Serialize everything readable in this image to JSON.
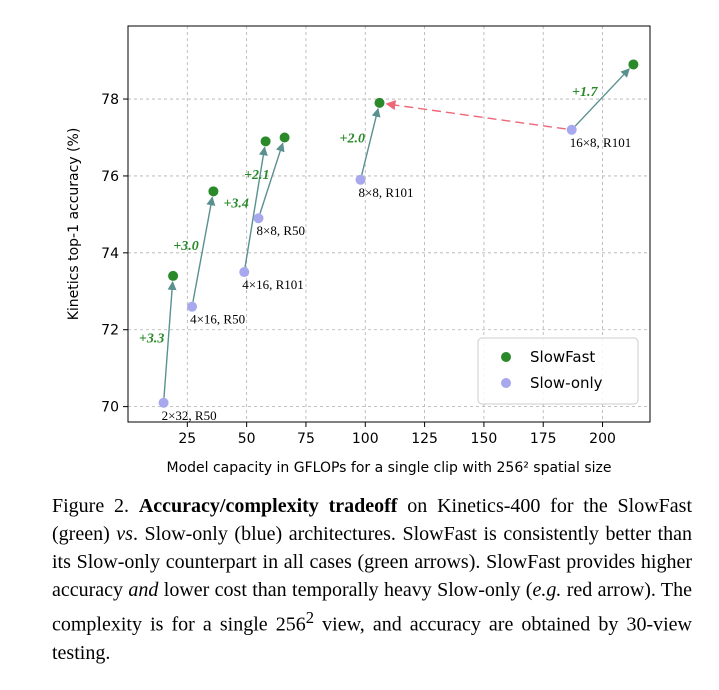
{
  "chart_data": {
    "type": "scatter",
    "xlabel": "Model capacity in GFLOPs for a single clip with 256² spatial size",
    "ylabel": "Kinetics top-1 accuracy (%)",
    "xlim": [
      0,
      220
    ],
    "ylim": [
      69.6,
      79.9
    ],
    "xticks": [
      25,
      50,
      75,
      100,
      125,
      150,
      175,
      200
    ],
    "yticks": [
      70,
      72,
      74,
      76,
      78
    ],
    "grid": true,
    "legend_position": "bottom-right",
    "colors": {
      "slowfast": "#2a8a2a",
      "slowonly": "#a7a8ee",
      "green_arrow": "#5a9090",
      "red_arrow": "#ee6677",
      "gain_label": "#2a8a2a"
    },
    "series": [
      {
        "name": "SlowFast",
        "points": [
          {
            "x": 19,
            "y": 73.4
          },
          {
            "x": 36,
            "y": 75.6
          },
          {
            "x": 58,
            "y": 76.9
          },
          {
            "x": 66,
            "y": 77.0
          },
          {
            "x": 106,
            "y": 77.9
          },
          {
            "x": 213,
            "y": 78.9
          }
        ]
      },
      {
        "name": "Slow-only",
        "points": [
          {
            "x": 15,
            "y": 70.1,
            "label": "2×32, R50"
          },
          {
            "x": 27,
            "y": 72.6,
            "label": "4×16, R50"
          },
          {
            "x": 49,
            "y": 73.5,
            "label": "4×16, R101"
          },
          {
            "x": 55,
            "y": 74.9,
            "label": "8×8, R50"
          },
          {
            "x": 98,
            "y": 75.9,
            "label": "8×8, R101"
          },
          {
            "x": 187,
            "y": 77.2,
            "label": "16×8, R101"
          }
        ]
      }
    ],
    "annotations": [
      {
        "from": [
          15,
          70.1
        ],
        "to": [
          19,
          73.4
        ],
        "text": "+3.3"
      },
      {
        "from": [
          27,
          72.6
        ],
        "to": [
          36,
          75.6
        ],
        "text": "+3.0"
      },
      {
        "from": [
          49,
          73.5
        ],
        "to": [
          58,
          76.9
        ],
        "text": "+3.4"
      },
      {
        "from": [
          55,
          74.9
        ],
        "to": [
          66,
          77.0
        ],
        "text": "+2.1"
      },
      {
        "from": [
          98,
          75.9
        ],
        "to": [
          106,
          77.9
        ],
        "text": "+2.0"
      },
      {
        "from": [
          187,
          77.2
        ],
        "to": [
          213,
          78.9
        ],
        "text": "+1.7"
      }
    ],
    "red_arrow": {
      "from": [
        187,
        77.2
      ],
      "to": [
        106,
        77.9
      ]
    }
  },
  "caption": {
    "prefix": "Figure 2.",
    "bold": "Accuracy/complexity tradeoff",
    "t1": "on Kinetics-400 for the SlowFast (green)",
    "vs": "vs",
    "t2": ". Slow-only (blue) architectures. SlowFast is consistently better than its Slow-only counterpart in all cases (green arrows). SlowFast provides higher accuracy",
    "and": "and",
    "t3": "lower cost than temporally heavy Slow-only (",
    "eg": "e.g.",
    "t4": "red arrow). The complexity is for a single 256",
    "sup": "2",
    "t5": "view, and accuracy are obtained by 30-view testing."
  }
}
